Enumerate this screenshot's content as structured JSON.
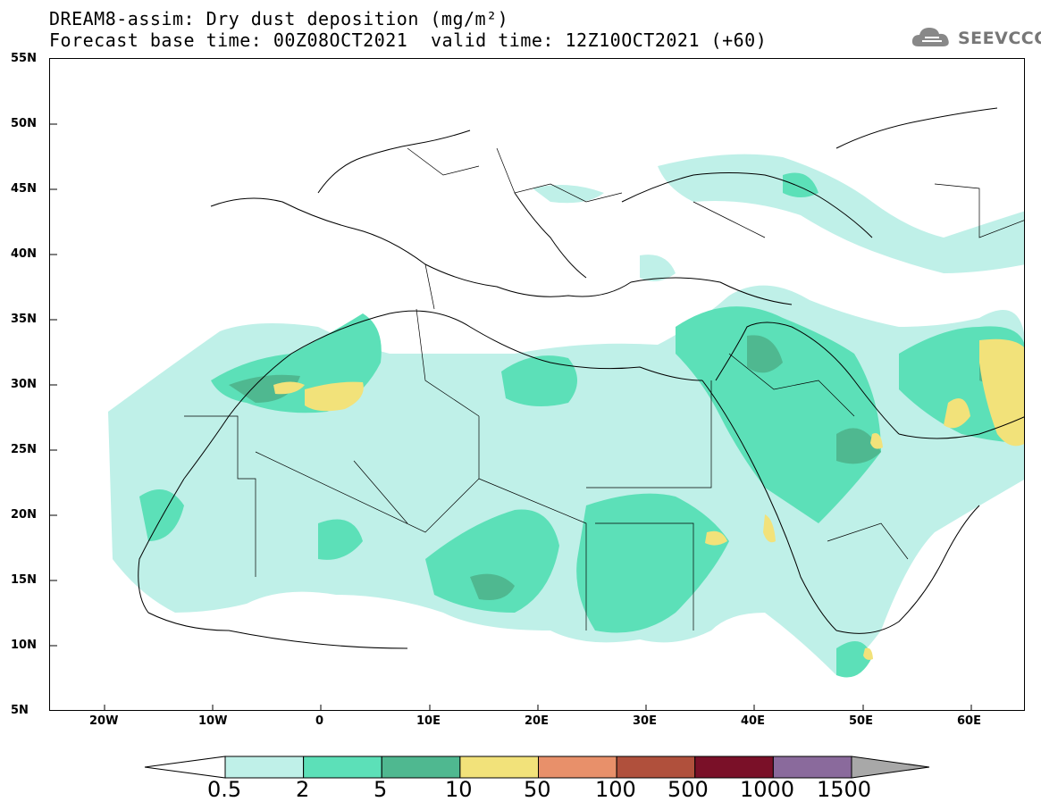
{
  "header": {
    "title_line1": "DREAM8-assim: Dry dust deposition (mg/m²)",
    "title_line2": "Forecast base time: 00Z08OCT2021",
    "valid_time": "valid time: 12Z10OCT2021 (+60)"
  },
  "logo": {
    "text": "SEEVCCC",
    "icon": "cloud-icon"
  },
  "map": {
    "lat_labels": [
      "55N",
      "50N",
      "45N",
      "40N",
      "35N",
      "30N",
      "25N",
      "20N",
      "15N",
      "10N",
      "5N"
    ],
    "lon_labels": [
      "20W",
      "10W",
      "0",
      "10E",
      "20E",
      "30E",
      "40E",
      "50E",
      "60E"
    ],
    "extent": {
      "lon": [
        -25,
        65
      ],
      "lat": [
        5,
        55
      ]
    }
  },
  "legend": {
    "labels": [
      "0.5",
      "2",
      "5",
      "10",
      "50",
      "100",
      "500",
      "1000",
      "1500"
    ],
    "colors": [
      "#bff0e8",
      "#5ce0b8",
      "#4fb890",
      "#f2e27a",
      "#e8906a",
      "#b0503c",
      "#7a1028",
      "#8a6a9c"
    ],
    "under_color": "#ffffff",
    "over_color": "#a8a8a8"
  }
}
